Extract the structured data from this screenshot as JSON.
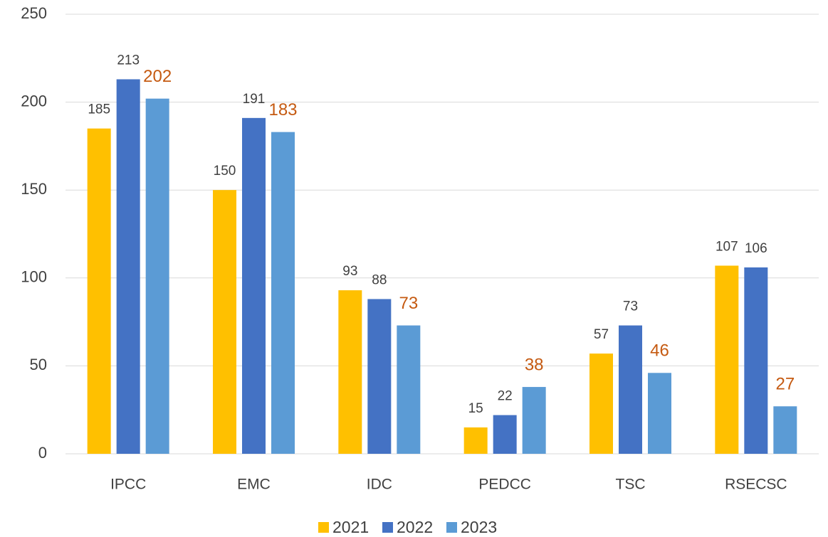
{
  "chart_data": {
    "type": "bar",
    "categories": [
      "IPCC",
      "EMC",
      "IDC",
      "PEDCC",
      "TSC",
      "RSECSC"
    ],
    "series": [
      {
        "name": "2021",
        "color": "#ffc000",
        "label_color": "#404040",
        "values": [
          185,
          150,
          93,
          15,
          57,
          107
        ]
      },
      {
        "name": "2022",
        "color": "#4472c4",
        "label_color": "#404040",
        "values": [
          213,
          191,
          88,
          22,
          73,
          106
        ]
      },
      {
        "name": "2023",
        "color": "#5b9bd5",
        "label_color": "#c55a11",
        "values": [
          202,
          183,
          73,
          38,
          46,
          27
        ]
      }
    ],
    "ylim": [
      0,
      250
    ],
    "yticks": [
      0,
      50,
      100,
      150,
      200,
      250
    ],
    "grid": true,
    "legend": "bottom"
  }
}
